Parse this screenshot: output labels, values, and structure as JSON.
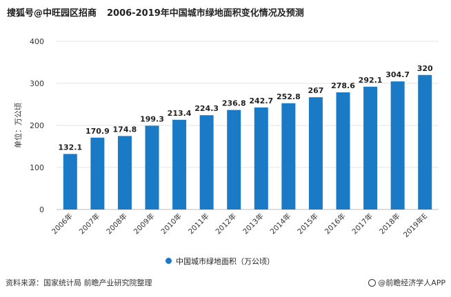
{
  "header": {
    "watermark": "搜狐号@中旺园区招商",
    "title": "2006-2019年中国城市绿地面积变化情况及预测"
  },
  "legend": {
    "label": "中国城市绿地面积（万公顷）"
  },
  "footer": {
    "source": "资料来源：国家统计局 前瞻产业研究院整理",
    "brand": "@前瞻经济学人APP"
  },
  "colors": {
    "bar": "#1a7ac6",
    "grid": "#e3e3e3",
    "text": "#333333"
  },
  "chart_data": {
    "type": "bar",
    "title": "2006-2019年中国城市绿地面积变化情况及预测",
    "ylabel": "单位：万公顷",
    "xlabel": "",
    "ylim": [
      0,
      400
    ],
    "yticks": [
      0,
      100,
      200,
      300,
      400
    ],
    "grid": true,
    "legend_position": "bottom",
    "categories": [
      "2006年",
      "2007年",
      "2008年",
      "2009年",
      "2010年",
      "2011年",
      "2012年",
      "2013年",
      "2014年",
      "2015年",
      "2016年",
      "2017年",
      "2018年",
      "2019年E"
    ],
    "series": [
      {
        "name": "中国城市绿地面积（万公顷）",
        "values": [
          132.1,
          170.9,
          174.8,
          199.3,
          213.4,
          224.3,
          236.8,
          242.7,
          252.8,
          267,
          278.6,
          292.1,
          304.7,
          320
        ],
        "labels": [
          "132.1",
          "170.9",
          "174.8",
          "199.3",
          "213.4",
          "224.3",
          "236.8",
          "242.7",
          "252.8",
          "267",
          "278.6",
          "292.1",
          "304.7",
          "320"
        ]
      }
    ]
  }
}
